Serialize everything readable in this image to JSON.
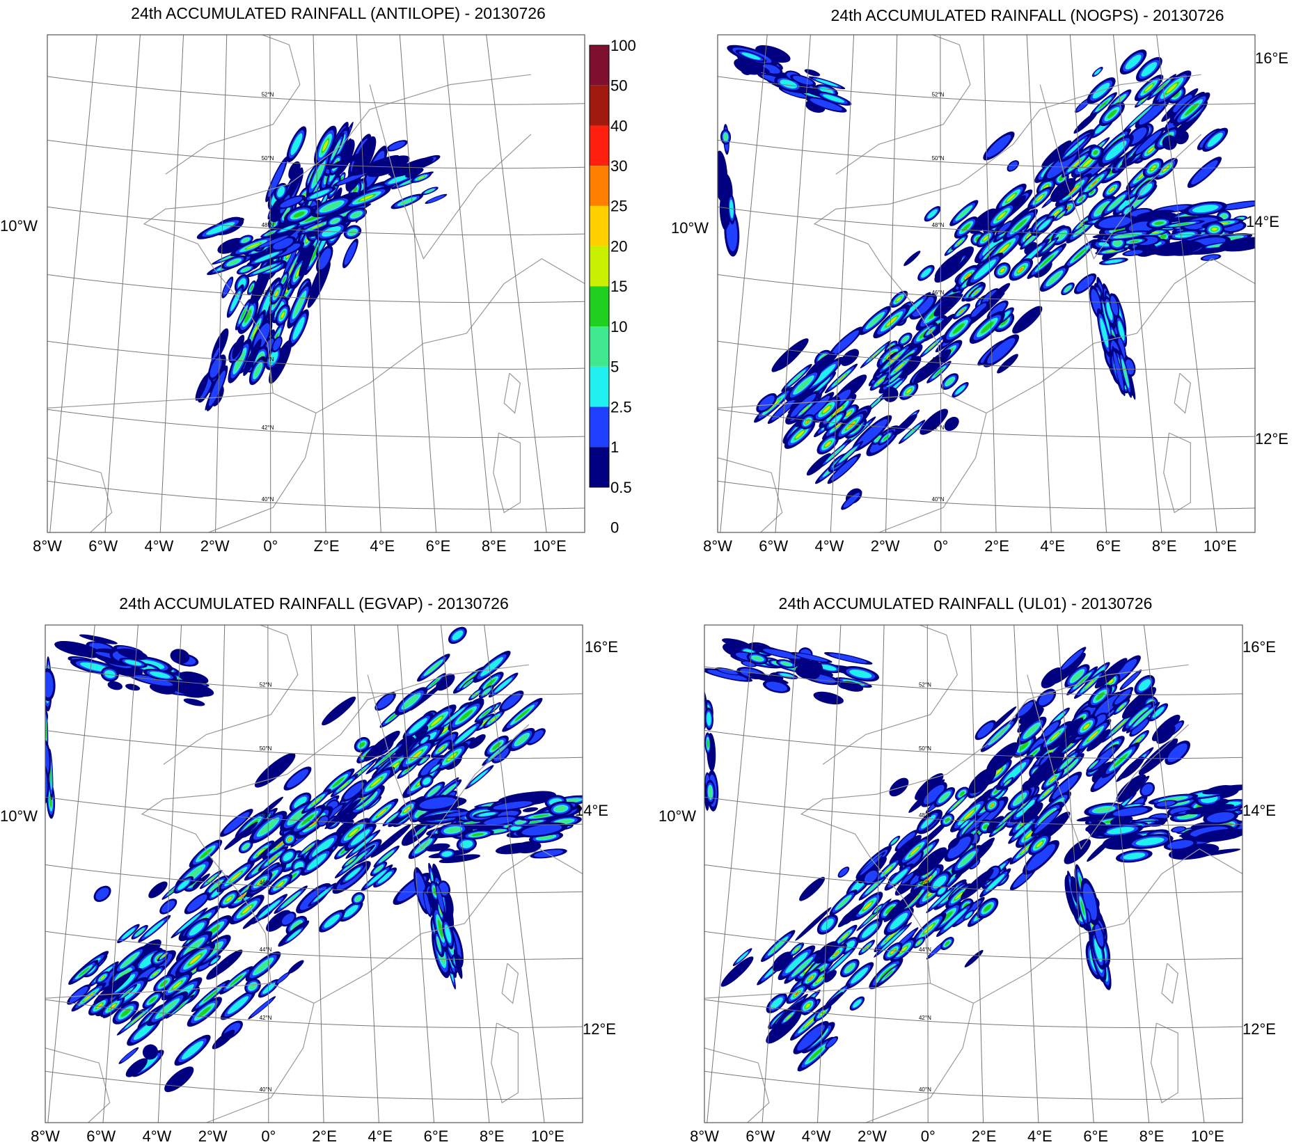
{
  "panels": [
    {
      "title": "24th ACCUMULATED RAINFALL (ANTILOPE) - 20130726",
      "lon_labels": [
        "8°W",
        "6°W",
        "4°W",
        "2°W",
        "0°",
        "Z°E",
        "4°E",
        "6°E",
        "8°E",
        "10°E"
      ],
      "left_labels": [
        "10°W"
      ],
      "right_labels": [],
      "lat_labels": [
        "52°N",
        "50°N",
        "48°N",
        "46°N",
        "44°N",
        "42°N",
        "40°N"
      ]
    },
    {
      "title": "24th ACCUMULATED RAINFALL (NOGPS) - 20130726",
      "lon_labels": [
        "8°W",
        "6°W",
        "4°W",
        "2°W",
        "0°",
        "2°E",
        "4°E",
        "6°E",
        "8°E",
        "10°E"
      ],
      "left_labels": [
        "10°W"
      ],
      "right_labels": [
        "16°E",
        "14°E",
        "12°E"
      ],
      "lat_labels": [
        "52°N",
        "50°N",
        "48°N",
        "46°N",
        "44°N",
        "42°N",
        "40°N"
      ]
    },
    {
      "title": "24th ACCUMULATED RAINFALL (EGVAP) - 20130726",
      "lon_labels": [
        "8°W",
        "6°W",
        "4°W",
        "2°W",
        "0°",
        "2°E",
        "4°E",
        "6°E",
        "8°E",
        "10°E"
      ],
      "left_labels": [
        "10°W"
      ],
      "right_labels": [
        "16°E",
        "14°E",
        "12°E"
      ],
      "lat_labels": [
        "52°N",
        "50°N",
        "48°N",
        "46°N",
        "44°N",
        "42°N",
        "40°N"
      ]
    },
    {
      "title": "24th ACCUMULATED RAINFALL (UL01) - 20130726",
      "lon_labels": [
        "8°W",
        "6°W",
        "4°W",
        "2°W",
        "0°",
        "2°E",
        "4°E",
        "6°E",
        "8°E",
        "10°E"
      ],
      "left_labels": [
        "10°W"
      ],
      "right_labels": [
        "16°E",
        "14°E",
        "12°E"
      ],
      "lat_labels": [
        "52°N",
        "50°N",
        "48°N",
        "46°N",
        "44°N",
        "42°N",
        "40°N"
      ]
    }
  ],
  "colorbar": {
    "levels": [
      100,
      50,
      40,
      30,
      25,
      20,
      15,
      10,
      5,
      2.5,
      1,
      0.5,
      0
    ],
    "colors": [
      "#801030",
      "#a01a10",
      "#ff2010",
      "#ff8000",
      "#ffd000",
      "#c8f000",
      "#20d020",
      "#40e890",
      "#20f0f0",
      "#2040ff",
      "#000080"
    ]
  }
}
